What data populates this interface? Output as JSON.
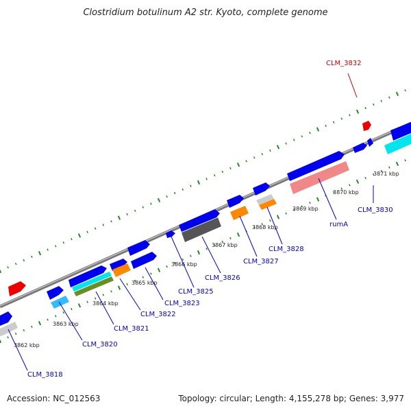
{
  "title": "Clostridium botulinum A2 str. Kyoto, complete genome",
  "accession": "Accession: NC_012563",
  "summary": "Topology: circular; Length: 4,155,278 bp; Genes: 3,977",
  "kbp_labels": [
    "3862 kbp",
    "3863 kbp",
    "3864 kbp",
    "3865 kbp",
    "3866 kbp",
    "3867 kbp",
    "3868 kbp",
    "3869 kbp",
    "3870 kbp",
    "3871 kbp"
  ],
  "gene_labels": {
    "clm_3818": "CLM_3818",
    "clm_3820": "CLM_3820",
    "clm_3821": "CLM_3821",
    "clm_3822": "CLM_3822",
    "clm_3823": "CLM_3823",
    "clm_3825": "CLM_3825",
    "clm_3826": "CLM_3826",
    "clm_3827": "CLM_3827",
    "clm_3828": "CLM_3828",
    "rumA": "rumA",
    "clm_3830": "CLM_3830",
    "clm_3832": "CLM_3832"
  },
  "colors": {
    "backbone": "#888888",
    "forward_gene": "#0000ee",
    "reverse_marker": "#ee0000",
    "tick": "#228822",
    "cyan": "#00e5ee",
    "lightblue": "#33bbff",
    "orange": "#ff8800",
    "salmon": "#f08888",
    "darkgray": "#555555",
    "lightgray": "#cccccc",
    "olive": "#6b8e23",
    "label_blue": "#0000cc",
    "label_red": "#cc0000"
  }
}
